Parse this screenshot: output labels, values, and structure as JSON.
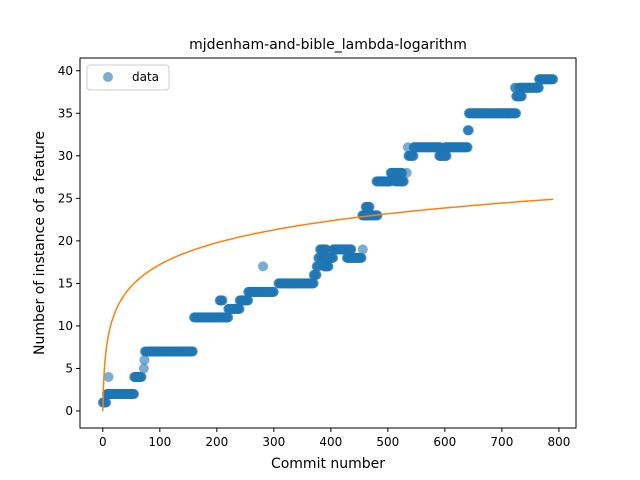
{
  "chart_data": {
    "type": "scatter",
    "title": "mjdenham-and-bible_lambda-logarithm",
    "xlabel": "Commit number",
    "ylabel": "Number of instance of a feature",
    "xlim": [
      -40,
      830
    ],
    "ylim": [
      -2,
      41.5
    ],
    "xticks": [
      0,
      100,
      200,
      300,
      400,
      500,
      600,
      700,
      800
    ],
    "yticks": [
      0,
      5,
      10,
      15,
      20,
      25,
      30,
      35,
      40
    ],
    "grid": false,
    "legend": {
      "placement": "top-left",
      "entries": [
        "data"
      ]
    },
    "colors": {
      "data": "#1f77b4",
      "fit": "#ff7f0e"
    },
    "series": [
      {
        "name": "data",
        "kind": "scatter",
        "steps": [
          [
            0,
            6,
            1
          ],
          [
            10,
            10,
            4
          ],
          [
            7,
            55,
            2
          ],
          [
            55,
            68,
            4
          ],
          [
            72,
            72,
            5
          ],
          [
            73,
            73,
            6
          ],
          [
            74,
            158,
            7
          ],
          [
            160,
            212,
            11
          ],
          [
            205,
            210,
            13
          ],
          [
            214,
            220,
            11
          ],
          [
            220,
            240,
            12
          ],
          [
            240,
            255,
            13
          ],
          [
            255,
            300,
            14
          ],
          [
            281,
            281,
            17
          ],
          [
            308,
            370,
            15
          ],
          [
            370,
            375,
            16
          ],
          [
            375,
            378,
            17
          ],
          [
            378,
            380,
            18
          ],
          [
            381,
            392,
            19
          ],
          [
            388,
            396,
            17
          ],
          [
            384,
            404,
            18
          ],
          [
            404,
            436,
            19
          ],
          [
            428,
            454,
            18
          ],
          [
            456,
            456,
            19
          ],
          [
            455,
            465,
            23
          ],
          [
            461,
            468,
            24
          ],
          [
            465,
            482,
            23
          ],
          [
            480,
            505,
            27
          ],
          [
            505,
            525,
            28
          ],
          [
            513,
            528,
            27
          ],
          [
            533,
            533,
            28
          ],
          [
            535,
            535,
            31
          ],
          [
            536,
            545,
            30
          ],
          [
            545,
            592,
            31
          ],
          [
            590,
            603,
            30
          ],
          [
            600,
            640,
            31
          ],
          [
            640,
            642,
            33
          ],
          [
            642,
            725,
            35
          ],
          [
            723,
            724,
            38
          ],
          [
            725,
            735,
            37
          ],
          [
            730,
            765,
            38
          ],
          [
            765,
            790,
            39
          ]
        ]
      },
      {
        "name": "",
        "kind": "line",
        "fit": "y = a*ln(x + 1)",
        "a": 3.73,
        "x_range": [
          0,
          790
        ]
      }
    ]
  }
}
